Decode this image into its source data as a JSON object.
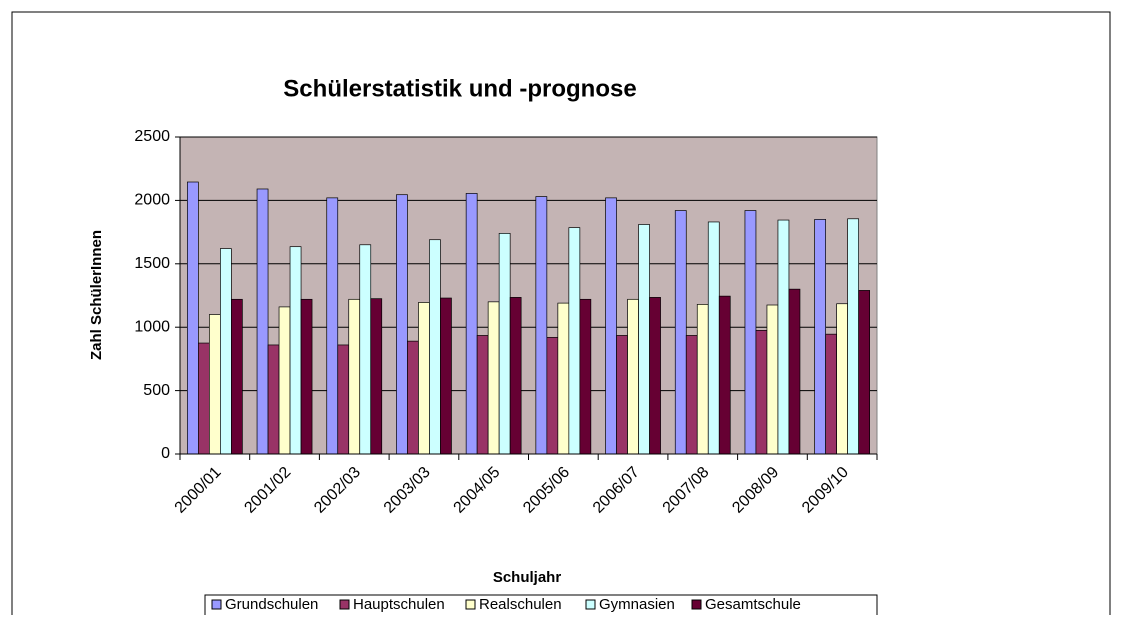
{
  "chart_data": {
    "type": "bar",
    "title": "Schülerstatistik und -prognose",
    "x_label": "Schuljahr",
    "y_label": "Zahl SchülerInnen",
    "categories": [
      "2000/01",
      "2001/02",
      "2002/03",
      "2003/03",
      "2004/05",
      "2005/06",
      "2006/07",
      "2007/08",
      "2008/09",
      "2009/10"
    ],
    "series": [
      {
        "name": "Grundschulen",
        "color": "#9999ff",
        "values": [
          2145,
          2090,
          2020,
          2045,
          2055,
          2030,
          2020,
          1920,
          1920,
          1850
        ]
      },
      {
        "name": "Hauptschulen",
        "color": "#993366",
        "values": [
          875,
          860,
          860,
          890,
          935,
          920,
          935,
          935,
          975,
          945
        ]
      },
      {
        "name": "Realschulen",
        "color": "#ffffcc",
        "values": [
          1100,
          1160,
          1220,
          1195,
          1200,
          1190,
          1220,
          1180,
          1175,
          1185
        ]
      },
      {
        "name": "Gymnasien",
        "color": "#ccffff",
        "values": [
          1620,
          1635,
          1650,
          1690,
          1740,
          1785,
          1810,
          1830,
          1845,
          1855
        ]
      },
      {
        "name": "Gesamtschule",
        "color": "#660033",
        "values": [
          1220,
          1220,
          1225,
          1230,
          1235,
          1220,
          1235,
          1245,
          1300,
          1290
        ]
      }
    ],
    "ylim": [
      0,
      2500
    ],
    "yticks": [
      0,
      500,
      1000,
      1500,
      2000,
      2500
    ],
    "grid": true,
    "plot_background": "#c4b4b4",
    "legend": "bottom"
  }
}
